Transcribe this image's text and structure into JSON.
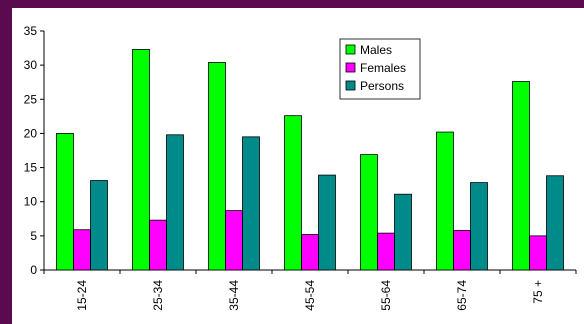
{
  "chart_data": {
    "type": "bar",
    "categories": [
      "15-24",
      "25-34",
      "35-44",
      "45-54",
      "55-64",
      "65-74",
      "75 +"
    ],
    "series": [
      {
        "name": "Males",
        "color": "#00ff00",
        "values": [
          20.0,
          32.3,
          30.4,
          22.6,
          16.9,
          20.2,
          27.6
        ]
      },
      {
        "name": "Females",
        "color": "#ff00ff",
        "values": [
          5.9,
          7.3,
          8.7,
          5.2,
          5.4,
          5.8,
          5.0
        ]
      },
      {
        "name": "Persons",
        "color": "#008b8b",
        "values": [
          13.1,
          19.8,
          19.5,
          13.9,
          11.1,
          12.8,
          13.8
        ]
      }
    ],
    "ylim": [
      0,
      35
    ],
    "yticks": [
      0,
      5,
      10,
      15,
      20,
      25,
      30,
      35
    ],
    "legend_position": "top-right",
    "grid": false
  }
}
